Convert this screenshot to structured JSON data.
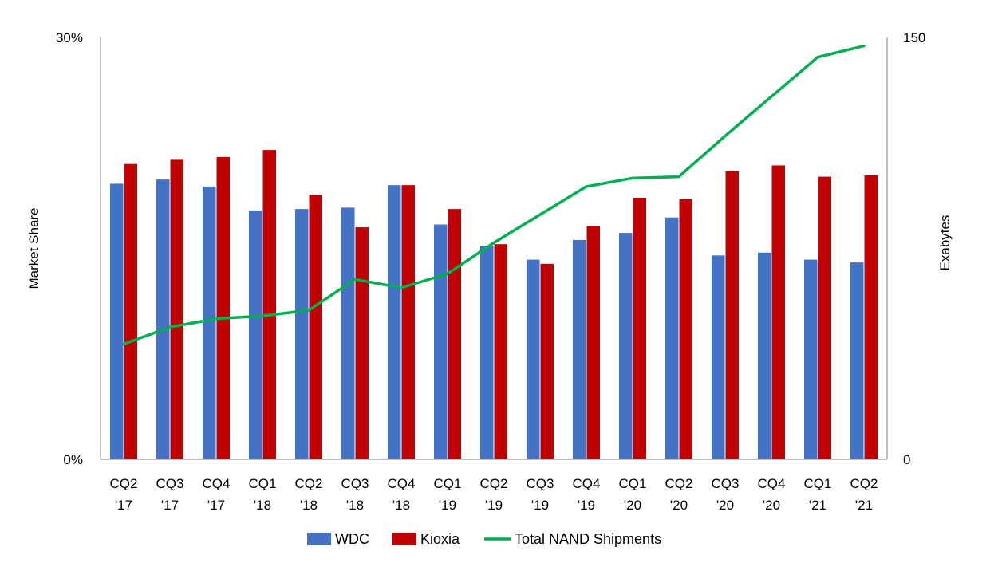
{
  "chart_data": {
    "type": "bar",
    "categories": [
      [
        "CQ2",
        "'17"
      ],
      [
        "CQ3",
        "'17"
      ],
      [
        "CQ4",
        "'17"
      ],
      [
        "CQ1",
        "'18"
      ],
      [
        "CQ2",
        "'18"
      ],
      [
        "CQ3",
        "'18"
      ],
      [
        "CQ4",
        "'18"
      ],
      [
        "CQ1",
        "'19"
      ],
      [
        "CQ2",
        "'19"
      ],
      [
        "CQ3",
        "'19"
      ],
      [
        "CQ4",
        "'19"
      ],
      [
        "CQ1",
        "'20"
      ],
      [
        "CQ2",
        "'20"
      ],
      [
        "CQ3",
        "'20"
      ],
      [
        "CQ4",
        "'20"
      ],
      [
        "CQ1",
        "'21"
      ],
      [
        "CQ2",
        "'21"
      ]
    ],
    "series": [
      {
        "name": "WDC",
        "kind": "bar",
        "axis": "left",
        "color": "#4472C4",
        "values": [
          19.6,
          19.9,
          19.4,
          17.7,
          17.8,
          17.9,
          19.5,
          16.7,
          15.2,
          14.2,
          15.6,
          16.1,
          17.2,
          14.5,
          14.7,
          14.2,
          14.0
        ]
      },
      {
        "name": "Kioxia",
        "kind": "bar",
        "axis": "left",
        "color": "#C00000",
        "values": [
          21.0,
          21.3,
          21.5,
          22.0,
          18.8,
          16.5,
          19.5,
          17.8,
          15.3,
          13.9,
          16.6,
          18.6,
          18.5,
          20.5,
          20.9,
          20.1,
          20.2
        ]
      },
      {
        "name": "Total NAND Shipments",
        "kind": "line",
        "axis": "right",
        "color": "#00B050",
        "values": [
          41,
          47,
          50,
          51,
          53,
          64,
          61,
          66,
          77,
          87,
          97,
          100,
          100.5,
          115,
          129,
          143,
          147
        ]
      }
    ],
    "y_left": {
      "label": "Market Share",
      "min": 0,
      "max": 30,
      "tick_labels": [
        "30%",
        "0%"
      ]
    },
    "y_right": {
      "label": "Exabytes",
      "min": 0,
      "max": 150,
      "tick_labels": [
        "150",
        "0"
      ]
    },
    "legend": {
      "position": "bottom"
    },
    "grid": false
  }
}
